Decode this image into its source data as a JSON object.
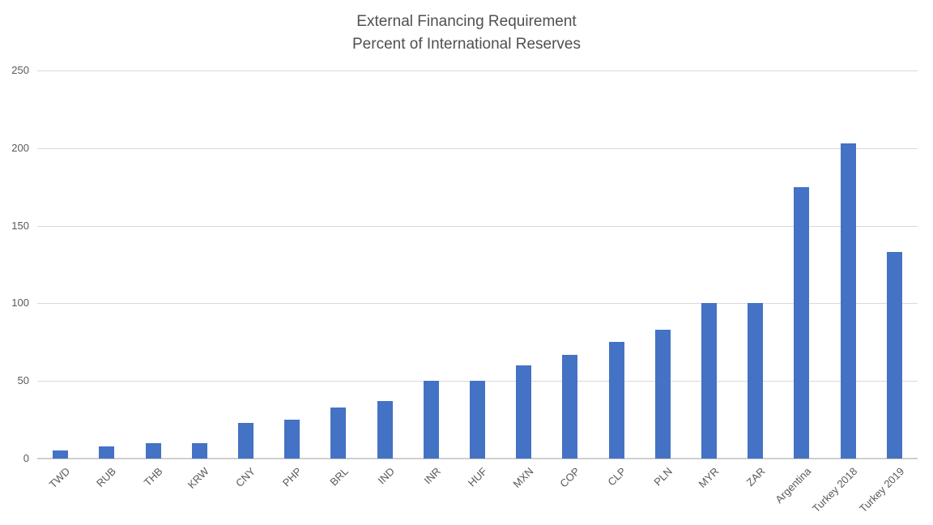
{
  "chart_data": {
    "type": "bar",
    "title": "External Financing Requirement",
    "subtitle": "Percent of International Reserves",
    "categories": [
      "TWD",
      "RUB",
      "THB",
      "KRW",
      "CNY",
      "PHP",
      "BRL",
      "IND",
      "INR",
      "HUF",
      "MXN",
      "COP",
      "CLP",
      "PLN",
      "MYR",
      "ZAR",
      "Argentina",
      "Turkey 2018",
      "Turkey 2019"
    ],
    "values": [
      5,
      8,
      10,
      10,
      23,
      25,
      33,
      37,
      50,
      50,
      60,
      67,
      75,
      83,
      100,
      100,
      175,
      203,
      133
    ],
    "xlabel": "",
    "ylabel": "",
    "ylim": [
      0,
      250
    ],
    "yticks": [
      0,
      50,
      100,
      150,
      200,
      250
    ],
    "grid": true,
    "legend": false,
    "bar_color": "#4472C4",
    "gridline_color": "#D9D9D9",
    "baseline_color": "#CFCFCF",
    "axis_label_color": "#595959",
    "title_color": "#505050",
    "background_color": "#FFFFFF"
  }
}
